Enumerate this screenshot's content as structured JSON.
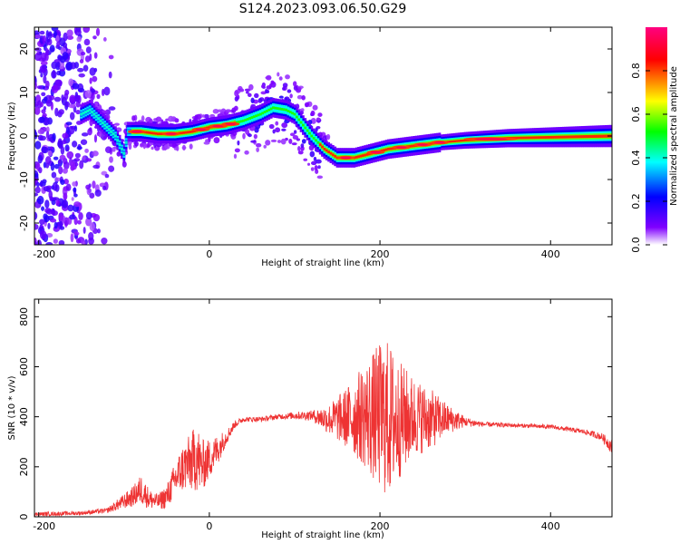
{
  "title": "S124.2023.093.06.50.G29",
  "chart_data": [
    {
      "type": "heatmap",
      "xlabel": "Height of straight line (km)",
      "ylabel": "Frequency (Hz)",
      "xlim": [
        -205,
        472
      ],
      "ylim": [
        -25,
        25
      ],
      "xticks": [
        -200,
        0,
        200,
        400
      ],
      "yticks": [
        -20,
        -10,
        0,
        10,
        20
      ],
      "colorbar": {
        "label": "Normalized spectral amplitude",
        "range": [
          0,
          1
        ],
        "ticks": [
          "0.0",
          "0.2",
          "0.4",
          "0.6",
          "0.8"
        ],
        "tick_values": [
          0.0,
          0.2,
          0.4,
          0.6,
          0.8
        ],
        "colormap": [
          "#ffffff",
          "#8000ff",
          "#0000ff",
          "#00ffff",
          "#00ff00",
          "#ffff00",
          "#ff0000",
          "#ff0080"
        ]
      },
      "ridge": {
        "x": [
          -150,
          -140,
          -125,
          -110,
          -100,
          -95,
          -80,
          -60,
          -40,
          -20,
          0,
          20,
          40,
          60,
          75,
          90,
          100,
          110,
          120,
          135,
          150,
          170,
          190,
          210,
          230,
          250,
          270,
          300,
          350,
          400,
          472
        ],
        "y": [
          5,
          6,
          3,
          0,
          -4,
          1,
          1,
          0.5,
          0.5,
          1,
          2,
          2.5,
          3.5,
          5,
          6.5,
          6,
          5,
          2.5,
          0,
          -3,
          -5,
          -5,
          -4,
          -3,
          -2.5,
          -2,
          -1.5,
          -1,
          -0.5,
          -0.3,
          0
        ]
      }
    },
    {
      "type": "line",
      "xlabel": "Height of straight line (km)",
      "ylabel": "SNR (10 * v/v)",
      "xlim": [
        -205,
        472
      ],
      "ylim": [
        0,
        870
      ],
      "xticks": [
        -200,
        0,
        200,
        400
      ],
      "yticks": [
        0,
        200,
        400,
        600,
        800
      ],
      "series": [
        {
          "color": "#ee3333",
          "envelope": {
            "x": [
              -205,
              -150,
              -120,
              -90,
              -80,
              -70,
              -60,
              -50,
              -40,
              -30,
              -20,
              -15,
              -10,
              0,
              10,
              20,
              30,
              40,
              60,
              80,
              100,
              120,
              140,
              160,
              180,
              200,
              210,
              220,
              240,
              260,
              280,
              300,
              320,
              360,
              400,
              440,
              460,
              472
            ],
            "center": [
              10,
              15,
              25,
              80,
              110,
              70,
              60,
              80,
              150,
              200,
              220,
              250,
              200,
              230,
              270,
              320,
              370,
              390,
              390,
              400,
              405,
              405,
              390,
              395,
              405,
              400,
              390,
              385,
              400,
              390,
              390,
              380,
              370,
              365,
              360,
              340,
              320,
              280
            ],
            "spread": [
              8,
              8,
              10,
              40,
              60,
              40,
              30,
              50,
              70,
              100,
              120,
              150,
              110,
              80,
              60,
              30,
              15,
              10,
              10,
              10,
              15,
              20,
              60,
              120,
              200,
              300,
              320,
              250,
              160,
              120,
              60,
              20,
              10,
              8,
              8,
              10,
              15,
              30
            ]
          }
        }
      ]
    }
  ]
}
